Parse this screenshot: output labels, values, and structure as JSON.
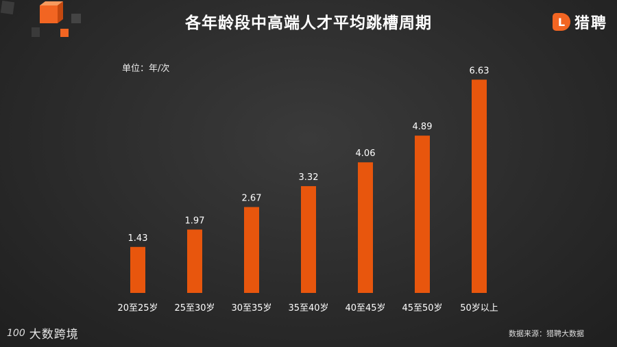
{
  "header": {
    "title": "各年龄段中高端人才平均跳槽周期"
  },
  "brand": {
    "mark": "L",
    "name": "猎聘"
  },
  "chart_data": {
    "type": "bar",
    "unit_label": "单位：年/次",
    "categories": [
      "20至25岁",
      "25至30岁",
      "30至35岁",
      "35至40岁",
      "40至45岁",
      "45至50岁",
      "50岁以上"
    ],
    "values": [
      1.43,
      1.97,
      2.67,
      3.32,
      4.06,
      4.89,
      6.63
    ],
    "data_labels": [
      "1.43",
      "1.97",
      "2.67",
      "3.32",
      "4.06",
      "4.89",
      "6.63"
    ],
    "bar_color": "#e8560d",
    "label_color": "#ffffff",
    "grid": false,
    "legend": "none"
  },
  "footer": {
    "source": "数据来源：猎聘大数据"
  },
  "watermark": {
    "logo": "100",
    "name": "大数跨境"
  }
}
